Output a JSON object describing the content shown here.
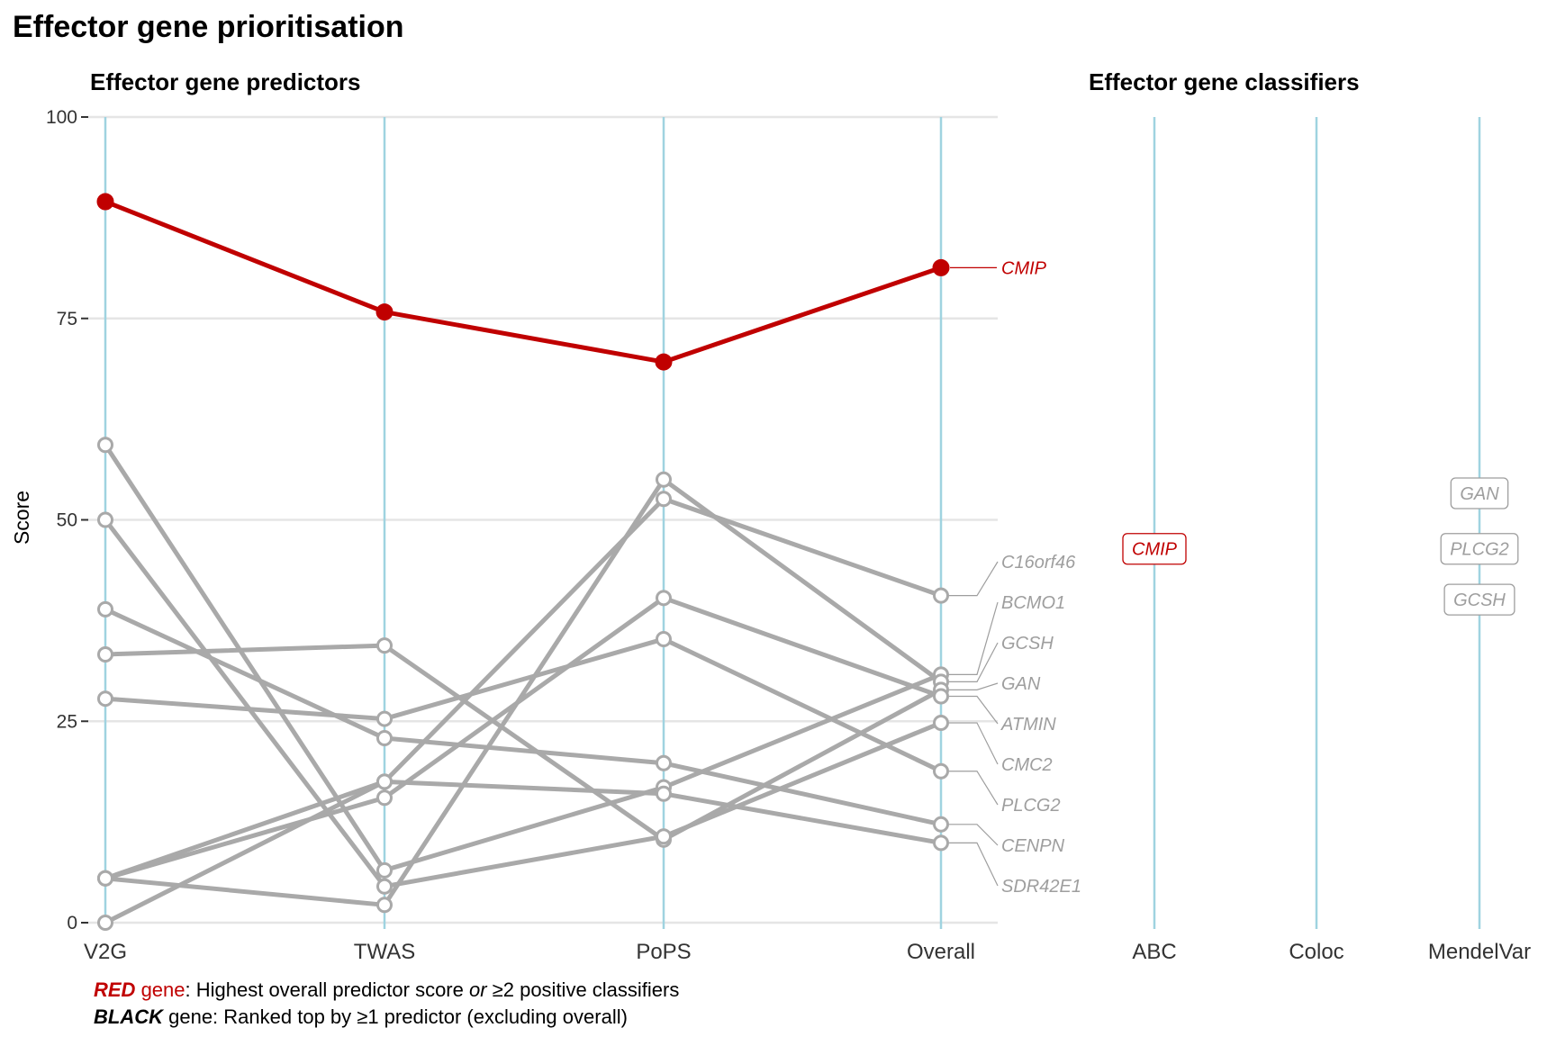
{
  "chart_data": {
    "type": "line",
    "title": "Effector gene prioritisation",
    "ylabel": "Score",
    "ylim": [
      0,
      100
    ],
    "yticks": [
      0,
      25,
      50,
      75,
      100
    ],
    "grid": true,
    "predictors": {
      "title": "Effector gene predictors",
      "categories": [
        "V2G",
        "TWAS",
        "PoPS",
        "Overall"
      ],
      "series": [
        {
          "name": "CMIP",
          "values": [
            89.5,
            75.8,
            69.6,
            81.3
          ],
          "highlight": true
        },
        {
          "name": "C16orf46",
          "values": [
            5.5,
            17.5,
            52.6,
            40.6
          ],
          "highlight": false
        },
        {
          "name": "BCMO1",
          "values": [
            59.3,
            6.5,
            16.8,
            30.8
          ],
          "highlight": false
        },
        {
          "name": "GCSH",
          "values": [
            5.5,
            2.2,
            55.0,
            29.9
          ],
          "highlight": false
        },
        {
          "name": "GAN",
          "values": [
            33.3,
            34.4,
            10.3,
            28.9
          ],
          "highlight": false
        },
        {
          "name": "ATMIN",
          "values": [
            5.5,
            15.5,
            40.3,
            28.1
          ],
          "highlight": false
        },
        {
          "name": "PLCG2",
          "values": [
            27.8,
            25.3,
            35.2,
            18.8
          ],
          "highlight": false
        },
        {
          "name": "CENPN",
          "values": [
            38.9,
            22.9,
            19.8,
            12.2
          ],
          "highlight": false
        },
        {
          "name": "SDR42E1",
          "values": [
            0.0,
            17.5,
            16.0,
            9.9
          ],
          "highlight": false
        },
        {
          "name": "CMC2",
          "values": [
            50.0,
            4.5,
            10.7,
            24.8
          ],
          "highlight": false
        }
      ]
    },
    "classifiers": {
      "title": "Effector gene classifiers",
      "categories": [
        "ABC",
        "Coloc",
        "MendelVar"
      ],
      "badges": [
        {
          "classifier": "ABC",
          "gene": "CMIP",
          "y": 46.4,
          "highlight": true
        },
        {
          "classifier": "MendelVar",
          "gene": "GAN",
          "y": 53.3,
          "highlight": false
        },
        {
          "classifier": "MendelVar",
          "gene": "PLCG2",
          "y": 46.4,
          "highlight": false
        },
        {
          "classifier": "MendelVar",
          "gene": "GCSH",
          "y": 40.1,
          "highlight": false
        }
      ]
    },
    "colors": {
      "red": "#c00000",
      "grey_line": "#a9a9a9",
      "grey_text": "#9e9e9e",
      "axis_line": "#9fd3e0",
      "gridline": "#e5e5e5"
    }
  },
  "legend": {
    "line1": {
      "strong": "RED",
      "colored": " gene",
      "text1": ": Highest overall predictor score ",
      "italic": "or",
      "text2": " ≥2 positive classifiers"
    },
    "line2": {
      "strong": "BLACK",
      "text": " gene: Ranked top by ≥1 predictor (excluding overall)"
    }
  }
}
